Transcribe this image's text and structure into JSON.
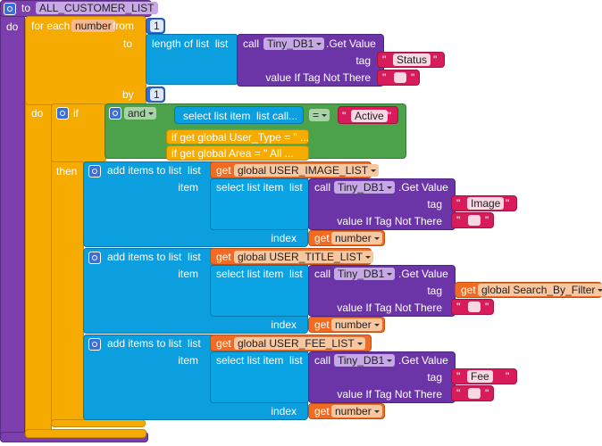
{
  "procedure": {
    "keyword": "to",
    "name": "ALL_CUSTOMER_LIST",
    "do": "do"
  },
  "for_each": {
    "label": "for each",
    "var": "number",
    "from": "from",
    "from_value": "1",
    "to": "to",
    "by": "by",
    "by_value": "1",
    "do": "do"
  },
  "length_block": {
    "label": "length of list  list",
    "call": "call",
    "component": "Tiny_DB1",
    "method": ".Get Value",
    "tag": "tag",
    "tag_value": "Status",
    "default_label": "value If Tag Not There"
  },
  "quote": "\"",
  "if_block": {
    "if": "if",
    "and": "and",
    "select": "select list item  list call...",
    "eq": "=",
    "eq_value": "Active",
    "cond2": "if get global User_Type = \" ...",
    "cond3": "if get global Area = \" All ...",
    "then": "then"
  },
  "add_items": [
    {
      "label": "add items to list  list",
      "get": "get",
      "list_name": "global USER_IMAGE_LIST",
      "item": "item",
      "select": "select list item  list",
      "call": "call",
      "component": "Tiny_DB1",
      "method": ".Get Value",
      "tag": "tag",
      "tag_value": "Image",
      "default_label": "value If Tag Not There",
      "index": "index",
      "index_get": "get",
      "index_var": "number"
    },
    {
      "label": "add items to list  list",
      "get": "get",
      "list_name": "global USER_TITLE_LIST",
      "item": "item",
      "select": "select list item  list",
      "call": "call",
      "component": "Tiny_DB1",
      "method": ".Get Value",
      "tag": "tag",
      "tag_get": "get",
      "tag_var": "global Search_By_Filter",
      "default_label": "value If Tag Not There",
      "index": "index",
      "index_get": "get",
      "index_var": "number"
    },
    {
      "label": "add items to list  list",
      "get": "get",
      "list_name": "global USER_FEE_LIST",
      "item": "item",
      "select": "select list item  list",
      "call": "call",
      "component": "Tiny_DB1",
      "method": ".Get Value",
      "tag": "tag",
      "tag_value": "Fee",
      "default_label": "value If Tag Not There",
      "index": "index",
      "index_get": "get",
      "index_var": "number"
    }
  ]
}
